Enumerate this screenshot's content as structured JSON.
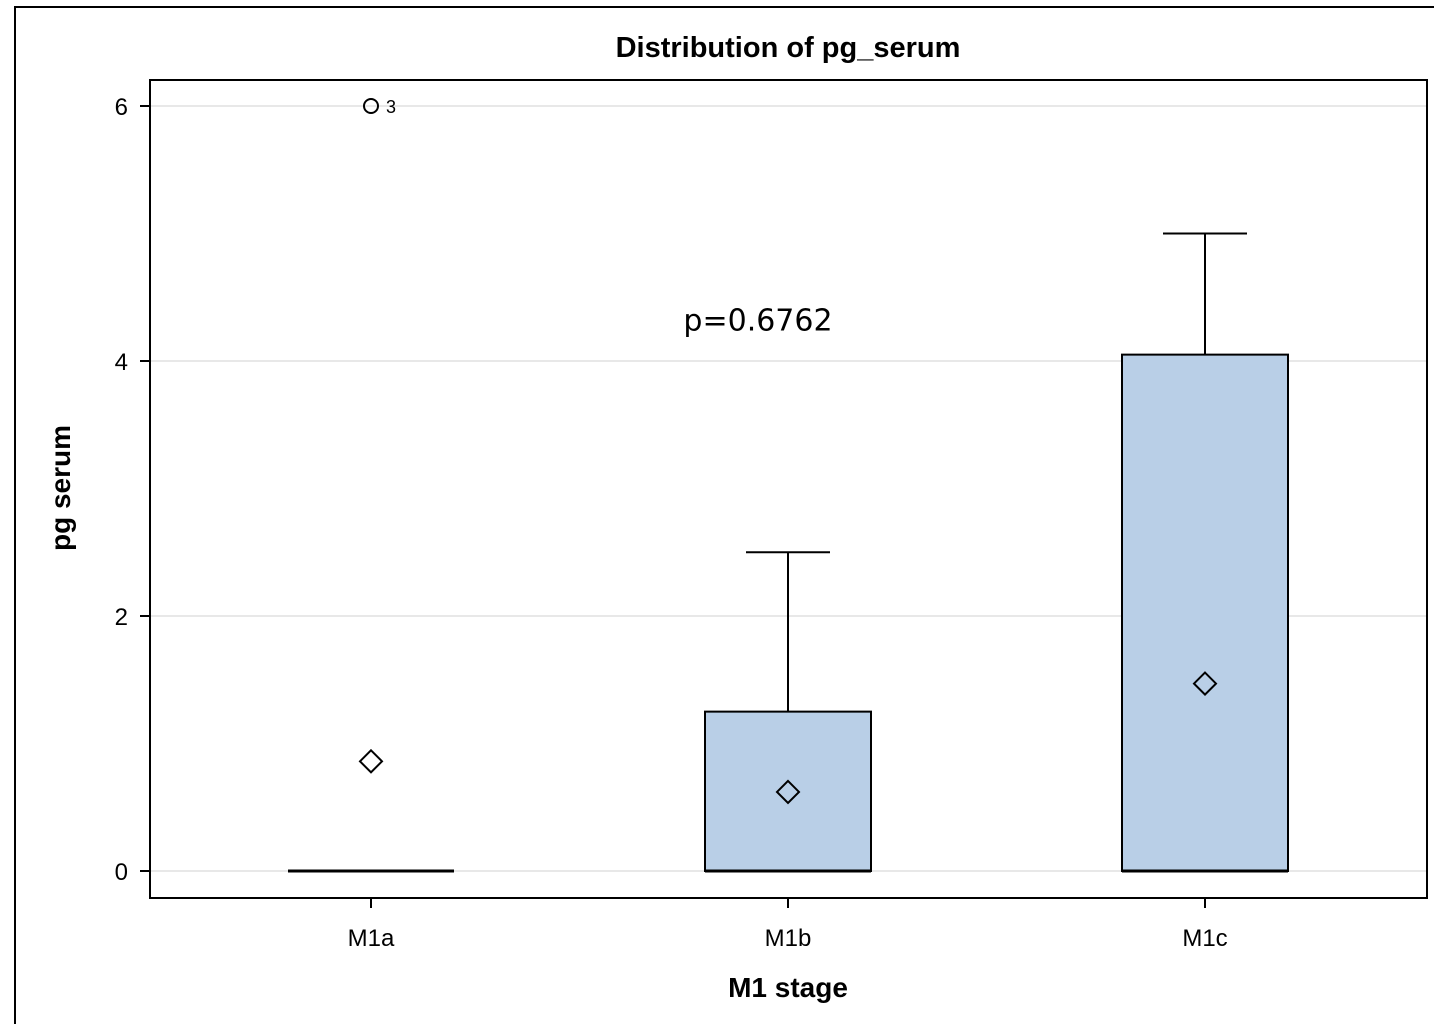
{
  "chart_data": {
    "type": "box",
    "title": "Distribution of pg_serum",
    "xlabel": "M1 stage",
    "ylabel": "pg serum",
    "ylim": [
      -0.2,
      6.2
    ],
    "yticks": [
      0,
      2,
      4,
      6
    ],
    "grid": true,
    "categories": [
      "M1a",
      "M1b",
      "M1c"
    ],
    "boxes": [
      {
        "category": "M1a",
        "min": 0,
        "q1": 0,
        "median": 0,
        "q3": 0,
        "max": 0,
        "mean": 0.86,
        "outliers": [
          {
            "value": 6,
            "label": "3"
          }
        ]
      },
      {
        "category": "M1b",
        "min": 0,
        "q1": 0,
        "median": 0,
        "q3": 1.25,
        "max": 2.5,
        "mean": 0.62,
        "outliers": []
      },
      {
        "category": "M1c",
        "min": 0,
        "q1": 0,
        "median": 0,
        "q3": 4.05,
        "max": 5.0,
        "mean": 1.47,
        "outliers": []
      }
    ],
    "annotation": "p=0.6762",
    "annotation_position": {
      "category": "M1b",
      "value": 4.2
    },
    "colors": {
      "box_fill": "#b9cfe7",
      "stroke": "#000000",
      "grid": "#e8e8e8"
    }
  }
}
